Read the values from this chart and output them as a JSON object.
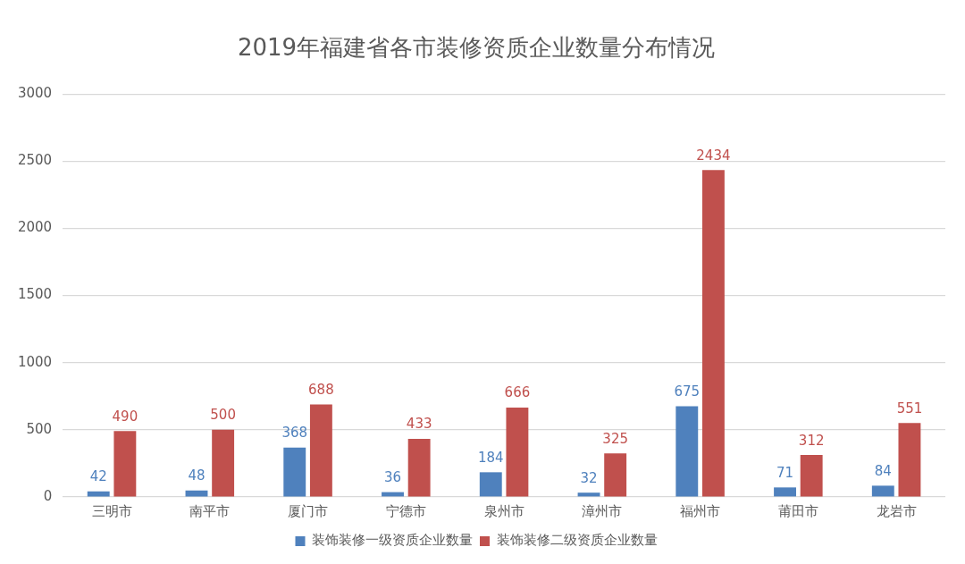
{
  "chart_data": {
    "type": "bar",
    "title": "2019年福建省各市装修资质企业数量分布情况",
    "categories": [
      "三明市",
      "南平市",
      "厦门市",
      "宁德市",
      "泉州市",
      "漳州市",
      "福州市",
      "莆田市",
      "龙岩市"
    ],
    "series": [
      {
        "name": "装饰装修一级资质企业数量",
        "color": "#4f81bd",
        "values": [
          42,
          48,
          368,
          36,
          184,
          32,
          675,
          71,
          84
        ]
      },
      {
        "name": "装饰装修二级资质企业数量",
        "color": "#c0504d",
        "values": [
          490,
          500,
          688,
          433,
          666,
          325,
          2434,
          312,
          551
        ]
      }
    ],
    "ylim": [
      0,
      3000
    ],
    "yticks": [
      0,
      500,
      1000,
      1500,
      2000,
      2500,
      3000
    ],
    "grid": "y",
    "legend": "bottom",
    "data_labels": true
  }
}
